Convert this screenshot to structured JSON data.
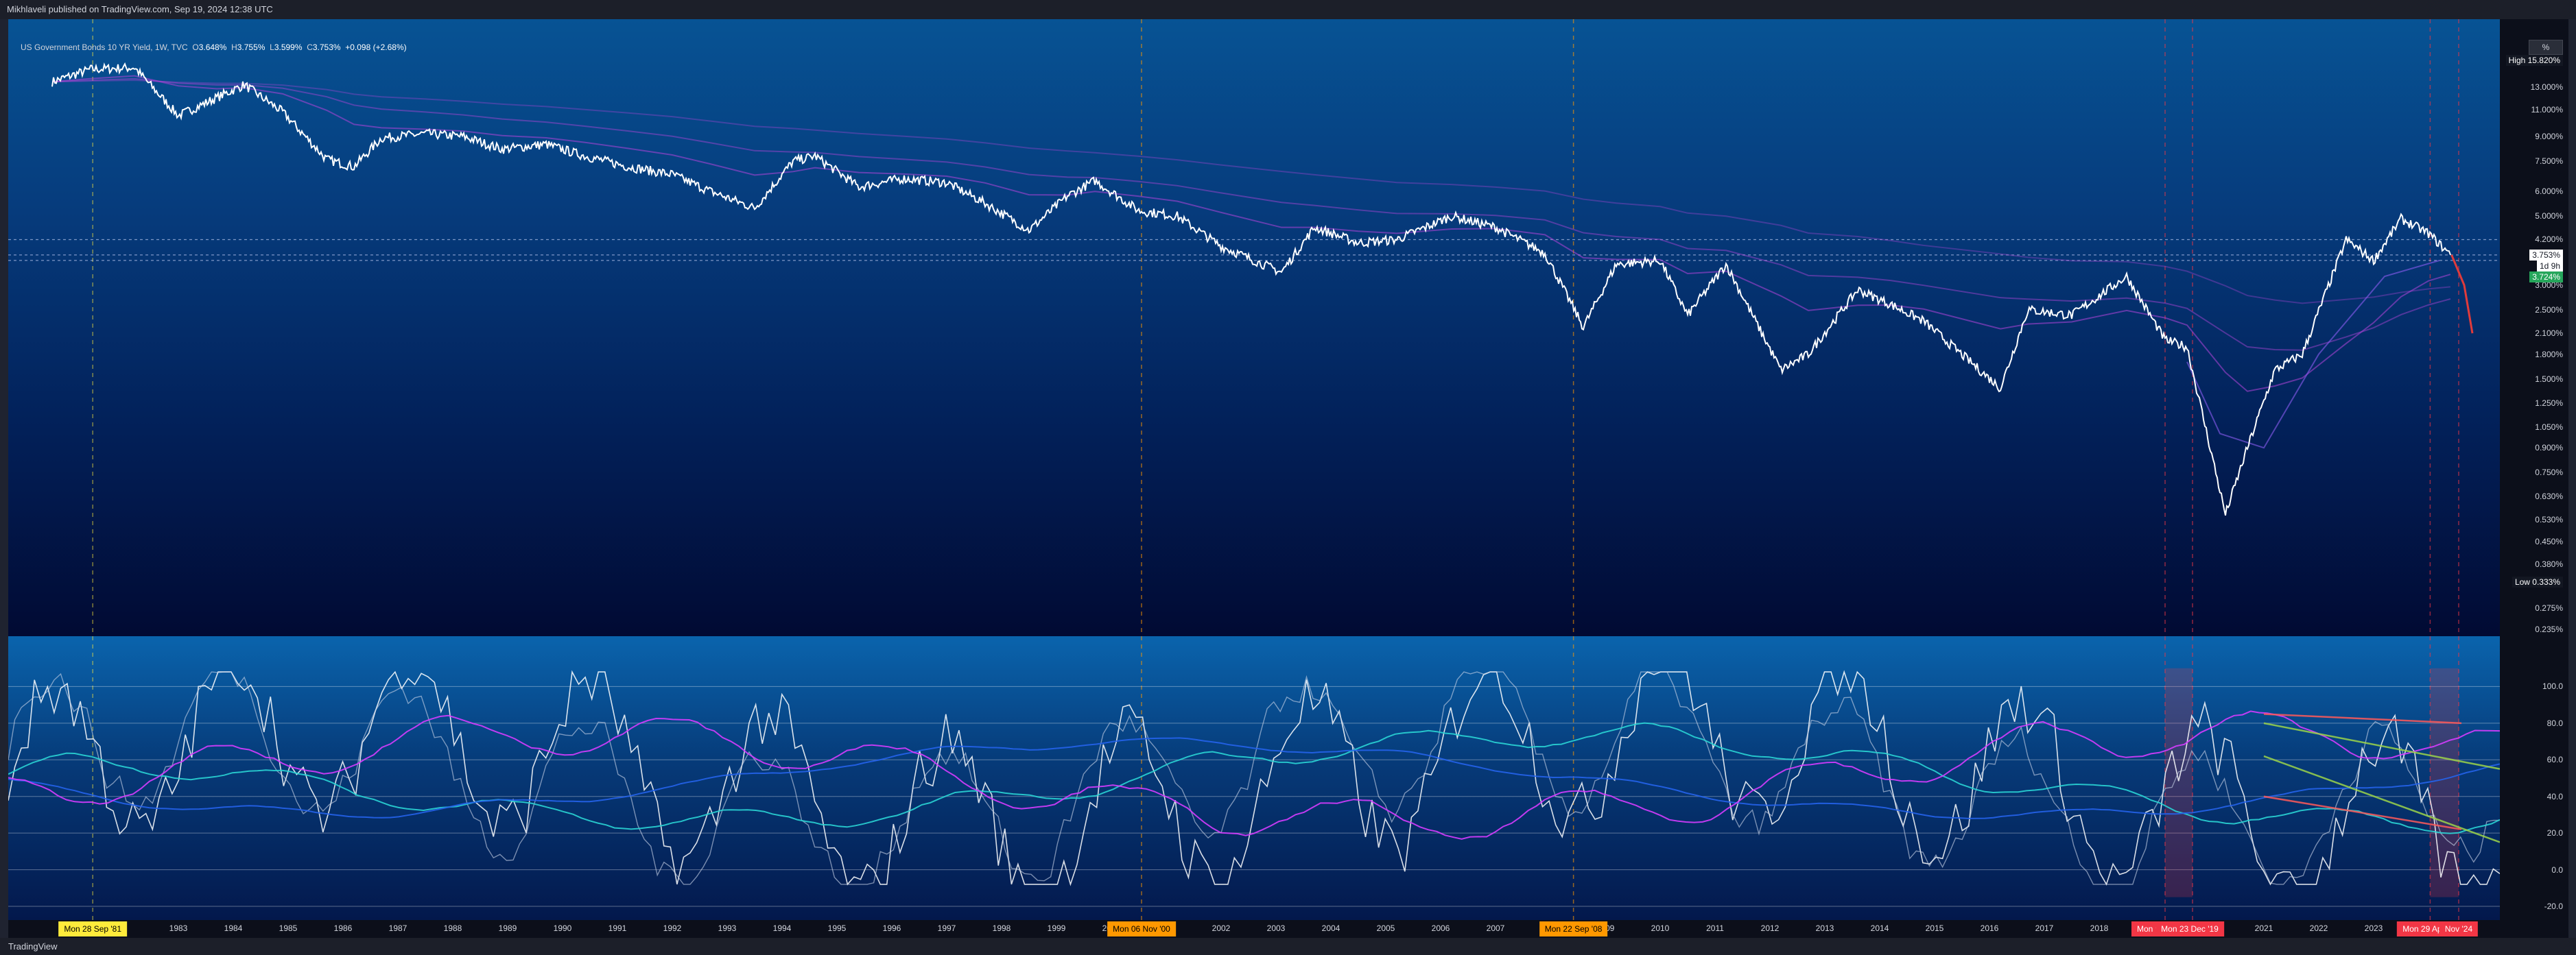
{
  "header": {
    "published": "Mikhlaveli published on TradingView.com, Sep 19, 2024 12:38 UTC"
  },
  "footer": {
    "brand": "TradingView"
  },
  "legend": {
    "symbol": "US Government Bonds 10 YR Yield, 1W, TVC",
    "o_label": "O",
    "o": "3.648%",
    "h_label": "H",
    "h": "3.755%",
    "l_label": "L",
    "l": "3.599%",
    "c_label": "C",
    "c": "3.753%",
    "change": "+0.098 (+2.68%)"
  },
  "scale_button": "%",
  "price_tags": {
    "high_label": "High",
    "high": "15.820%",
    "low_label": "Low",
    "low": "0.333%",
    "last": "3.753%",
    "timeframe": "1d 9h",
    "secondary": "3.724%"
  },
  "date_markers": [
    "Mon 28 Sep '81",
    "Mon 06 Nov '00",
    "Mon 22 Sep '08",
    "Mon 9C",
    "Mon 23 Dec '19",
    "Mon 29 Apr '24",
    "Nov '24"
  ],
  "colors": {
    "price_line": "#ffffff",
    "ema_ribbon": "#b044d8",
    "osc_cyan": "#2ad4d4",
    "osc_blue": "#2563eb",
    "osc_magenta": "#d63cff",
    "band_green": "#9cd44a",
    "band_red": "#ff5a5a",
    "marker_yellow": "#ffeb3b",
    "marker_orange": "#ff9800",
    "marker_red": "#f23645"
  },
  "chart_data": [
    {
      "type": "line",
      "title": "US Government Bonds 10 YR Yield, 1W, TVC",
      "scale": "log",
      "y_ticks": [
        "15.820%",
        "13.000%",
        "11.000%",
        "9.000%",
        "7.500%",
        "6.000%",
        "5.000%",
        "4.200%",
        "3.000%",
        "2.500%",
        "2.100%",
        "1.800%",
        "1.500%",
        "1.250%",
        "1.050%",
        "0.900%",
        "0.750%",
        "0.630%",
        "0.530%",
        "0.450%",
        "0.380%",
        "0.333%",
        "0.275%",
        "0.235%"
      ],
      "x_ticks": [
        "1981",
        "1983",
        "1984",
        "1985",
        "1986",
        "1987",
        "1988",
        "1989",
        "1990",
        "1991",
        "1992",
        "1993",
        "1994",
        "1995",
        "1996",
        "1997",
        "1998",
        "1999",
        "2000",
        "2002",
        "2003",
        "2004",
        "2005",
        "2006",
        "2007",
        "2009",
        "2010",
        "2011",
        "2012",
        "2013",
        "2014",
        "2015",
        "2016",
        "2017",
        "2018",
        "2021",
        "2022",
        "2023"
      ],
      "x": [
        1981.0,
        1981.7,
        1982.5,
        1983.3,
        1984.0,
        1984.5,
        1985.2,
        1986.0,
        1986.5,
        1987.0,
        1987.8,
        1988.5,
        1989.2,
        1990.0,
        1990.7,
        1991.5,
        1992.3,
        1993.0,
        1993.8,
        1994.5,
        1994.9,
        1995.7,
        1996.5,
        1997.3,
        1998.0,
        1998.8,
        1999.5,
        2000.0,
        2000.8,
        2001.5,
        2002.3,
        2003.4,
        2004.0,
        2004.8,
        2005.5,
        2006.5,
        2007.3,
        2008.2,
        2008.9,
        2009.5,
        2010.3,
        2010.8,
        2011.5,
        2012.5,
        2013.0,
        2013.9,
        2014.5,
        2015.1,
        2016.5,
        2017.0,
        2017.8,
        2018.8,
        2019.5,
        2019.9,
        2020.6,
        2021.0,
        2021.5,
        2022.0,
        2022.8,
        2023.3,
        2023.8,
        2024.3,
        2024.7
      ],
      "values": [
        13.5,
        14.8,
        15.0,
        10.5,
        12.0,
        13.2,
        10.8,
        7.6,
        7.2,
        8.9,
        9.2,
        9.0,
        8.2,
        8.5,
        7.8,
        7.2,
        6.8,
        6.0,
        5.3,
        7.5,
        7.8,
        6.2,
        6.6,
        6.4,
        5.5,
        4.5,
        5.8,
        6.5,
        5.2,
        5.0,
        4.0,
        3.3,
        4.6,
        4.1,
        4.2,
        5.0,
        4.6,
        3.8,
        2.2,
        3.5,
        3.6,
        2.4,
        3.5,
        1.6,
        1.8,
        2.9,
        2.6,
        2.3,
        1.4,
        2.5,
        2.4,
        3.2,
        2.0,
        1.9,
        0.55,
        0.9,
        1.6,
        1.8,
        4.2,
        3.6,
        4.9,
        4.4,
        3.75
      ]
    },
    {
      "type": "line",
      "title": "",
      "y_ticks": [
        "100.0",
        "80.0",
        "60.0",
        "40.0",
        "20.0",
        "0.0",
        "-20.0"
      ],
      "ylim": [
        -20,
        120
      ],
      "levels": [
        20,
        80
      ]
    }
  ]
}
